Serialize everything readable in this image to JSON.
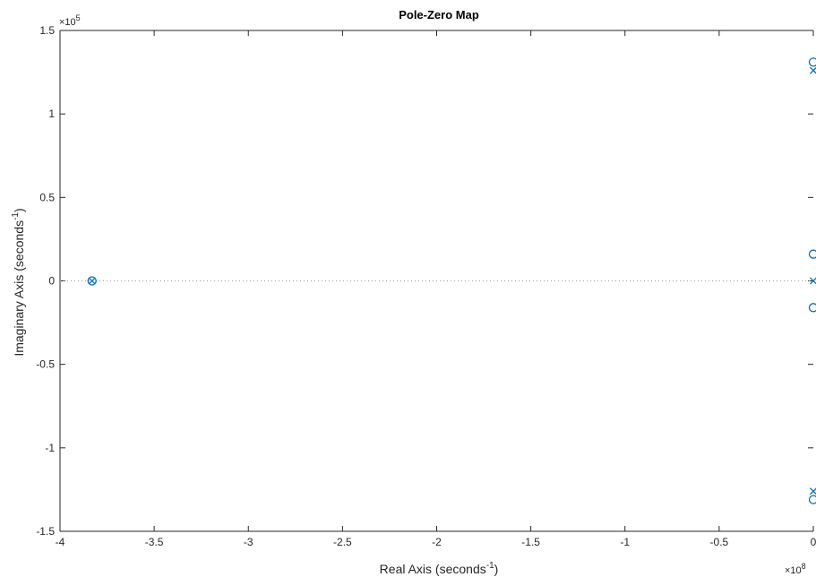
{
  "chart_data": {
    "type": "scatter",
    "title": "Pole-Zero Map",
    "xlabel": {
      "base": "Real Axis (seconds",
      "sup": "-1",
      "close": ")"
    },
    "ylabel": {
      "base": "Imaginary Axis (seconds",
      "sup": "-1",
      "close": ")"
    },
    "x_multiplier": {
      "prefix": "×10",
      "exp": "8"
    },
    "y_multiplier": {
      "prefix": "×10",
      "exp": "5"
    },
    "xlim": [
      -4,
      0
    ],
    "ylim": [
      -1.5,
      1.5
    ],
    "x_ticks": [
      -4,
      -3.5,
      -3,
      -2.5,
      -2,
      -1.5,
      -1,
      -0.5,
      0
    ],
    "x_tick_labels": [
      "-4",
      "-3.5",
      "-3",
      "-2.5",
      "-2",
      "-1.5",
      "-1",
      "-0.5",
      "0"
    ],
    "y_ticks": [
      -1.5,
      -1,
      -0.5,
      0,
      0.5,
      1,
      1.5
    ],
    "y_tick_labels": [
      "-1.5",
      "-1",
      "-0.5",
      "0",
      "0.5",
      "1",
      "1.5"
    ],
    "zero_line": true,
    "grid": false,
    "marker_color": "#0072BD",
    "series": [
      {
        "marker": "o",
        "points": [
          {
            "x": -3.83,
            "y": 0
          },
          {
            "x": 0,
            "y": 1.31
          },
          {
            "x": 0,
            "y": 0.16
          },
          {
            "x": 0,
            "y": -0.16
          },
          {
            "x": 0,
            "y": -1.31
          }
        ]
      },
      {
        "marker": "x",
        "points": [
          {
            "x": -3.83,
            "y": 0
          },
          {
            "x": 0,
            "y": 1.26
          },
          {
            "x": 0,
            "y": 0
          },
          {
            "x": 0,
            "y": -1.26
          }
        ]
      }
    ]
  }
}
